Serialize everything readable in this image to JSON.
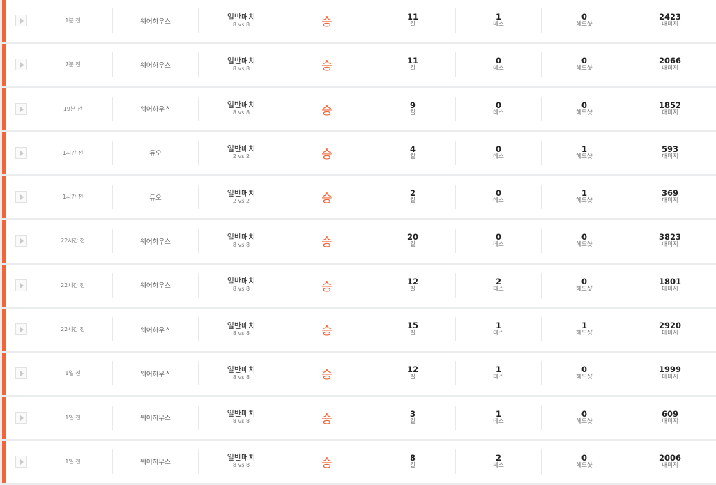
{
  "colors": {
    "accent": "#f26538",
    "background": "#ebecee"
  },
  "labels": {
    "kills": "킬",
    "deaths": "데스",
    "headshots": "헤드샷",
    "damage": "대미지"
  },
  "matches": [
    {
      "time": "1분 전",
      "map": "웨어하우스",
      "mode": "일반매치",
      "team": "8 vs 8",
      "result": "승",
      "kills": "11",
      "deaths": "1",
      "headshots": "0",
      "damage": "2423"
    },
    {
      "time": "7분 전",
      "map": "웨어하우스",
      "mode": "일반매치",
      "team": "8 vs 8",
      "result": "승",
      "kills": "11",
      "deaths": "0",
      "headshots": "0",
      "damage": "2066"
    },
    {
      "time": "19분 전",
      "map": "웨어하우스",
      "mode": "일반매치",
      "team": "8 vs 8",
      "result": "승",
      "kills": "9",
      "deaths": "0",
      "headshots": "0",
      "damage": "1852"
    },
    {
      "time": "1시간 전",
      "map": "듀오",
      "mode": "일반매치",
      "team": "2 vs 2",
      "result": "승",
      "kills": "4",
      "deaths": "0",
      "headshots": "1",
      "damage": "593"
    },
    {
      "time": "1시간 전",
      "map": "듀오",
      "mode": "일반매치",
      "team": "2 vs 2",
      "result": "승",
      "kills": "2",
      "deaths": "0",
      "headshots": "1",
      "damage": "369"
    },
    {
      "time": "22시간 전",
      "map": "웨어하우스",
      "mode": "일반매치",
      "team": "8 vs 8",
      "result": "승",
      "kills": "20",
      "deaths": "0",
      "headshots": "0",
      "damage": "3823"
    },
    {
      "time": "22시간 전",
      "map": "웨어하우스",
      "mode": "일반매치",
      "team": "8 vs 8",
      "result": "승",
      "kills": "12",
      "deaths": "2",
      "headshots": "0",
      "damage": "1801"
    },
    {
      "time": "22시간 전",
      "map": "웨어하우스",
      "mode": "일반매치",
      "team": "8 vs 8",
      "result": "승",
      "kills": "15",
      "deaths": "1",
      "headshots": "1",
      "damage": "2920"
    },
    {
      "time": "1일 전",
      "map": "웨어하우스",
      "mode": "일반매치",
      "team": "8 vs 8",
      "result": "승",
      "kills": "12",
      "deaths": "1",
      "headshots": "0",
      "damage": "1999"
    },
    {
      "time": "1일 전",
      "map": "웨어하우스",
      "mode": "일반매치",
      "team": "8 vs 8",
      "result": "승",
      "kills": "3",
      "deaths": "1",
      "headshots": "0",
      "damage": "609"
    },
    {
      "time": "1일 전",
      "map": "웨어하우스",
      "mode": "일반매치",
      "team": "8 vs 8",
      "result": "승",
      "kills": "8",
      "deaths": "2",
      "headshots": "0",
      "damage": "2006"
    }
  ]
}
